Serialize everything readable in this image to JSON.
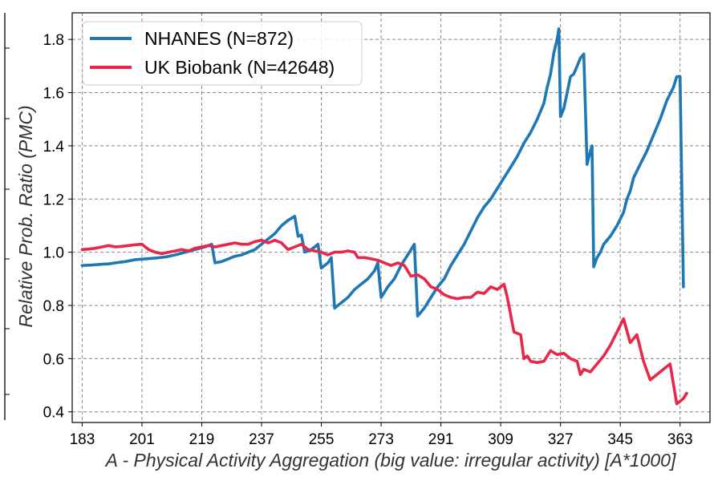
{
  "chart_data": {
    "type": "line",
    "title": "",
    "xlabel": "A - Physical Activity Aggregation (big value: irregular activity) [A*1000]",
    "ylabel": "Relative Prob. Ratio (PMC)",
    "xlim": [
      180,
      372
    ],
    "ylim": [
      0.36,
      1.9
    ],
    "x_ticks": [
      183,
      201,
      219,
      237,
      255,
      273,
      291,
      309,
      327,
      345,
      363
    ],
    "y_ticks": [
      0.4,
      0.6,
      0.8,
      1.0,
      1.2,
      1.4,
      1.6,
      1.8
    ],
    "y_tick_labels": [
      "0.4",
      "0.6",
      "0.8",
      "1.0",
      "1.2",
      "1.4",
      "1.6",
      "1.8"
    ],
    "grid": true,
    "legend_position": "top-left",
    "series": [
      {
        "name": "NHANES (N=872)",
        "color": "#1f77b4",
        "points": [
          [
            183,
            0.95
          ],
          [
            186,
            0.952
          ],
          [
            189,
            0.955
          ],
          [
            191,
            0.956
          ],
          [
            193,
            0.96
          ],
          [
            196,
            0.965
          ],
          [
            199,
            0.972
          ],
          [
            202,
            0.975
          ],
          [
            205,
            0.978
          ],
          [
            208,
            0.982
          ],
          [
            211,
            0.99
          ],
          [
            214,
            1.0
          ],
          [
            217,
            1.01
          ],
          [
            220,
            1.02
          ],
          [
            222,
            1.03
          ],
          [
            223,
            0.96
          ],
          [
            225,
            0.965
          ],
          [
            227,
            0.975
          ],
          [
            229,
            0.985
          ],
          [
            231,
            0.99
          ],
          [
            233,
            1.0
          ],
          [
            235,
            1.01
          ],
          [
            237,
            1.03
          ],
          [
            239,
            1.05
          ],
          [
            241,
            1.07
          ],
          [
            243,
            1.1
          ],
          [
            245,
            1.12
          ],
          [
            247,
            1.135
          ],
          [
            248,
            1.06
          ],
          [
            249,
            1.065
          ],
          [
            250,
            1.0
          ],
          [
            252,
            1.01
          ],
          [
            254,
            1.03
          ],
          [
            255,
            0.94
          ],
          [
            257,
            0.96
          ],
          [
            258,
            0.98
          ],
          [
            259,
            0.79
          ],
          [
            261,
            0.81
          ],
          [
            263,
            0.83
          ],
          [
            265,
            0.86
          ],
          [
            267,
            0.88
          ],
          [
            269,
            0.9
          ],
          [
            271,
            0.93
          ],
          [
            272,
            0.96
          ],
          [
            273,
            0.83
          ],
          [
            275,
            0.87
          ],
          [
            277,
            0.9
          ],
          [
            279,
            0.95
          ],
          [
            281,
            0.99
          ],
          [
            283,
            1.03
          ],
          [
            284,
            0.76
          ],
          [
            286,
            0.79
          ],
          [
            288,
            0.83
          ],
          [
            290,
            0.87
          ],
          [
            292,
            0.9
          ],
          [
            294,
            0.95
          ],
          [
            296,
            0.99
          ],
          [
            298,
            1.03
          ],
          [
            300,
            1.08
          ],
          [
            302,
            1.13
          ],
          [
            304,
            1.17
          ],
          [
            306,
            1.2
          ],
          [
            308,
            1.24
          ],
          [
            310,
            1.28
          ],
          [
            312,
            1.32
          ],
          [
            314,
            1.36
          ],
          [
            316,
            1.41
          ],
          [
            318,
            1.45
          ],
          [
            320,
            1.5
          ],
          [
            322,
            1.56
          ],
          [
            323,
            1.62
          ],
          [
            324,
            1.67
          ],
          [
            325,
            1.75
          ],
          [
            326,
            1.8
          ],
          [
            326.5,
            1.84
          ],
          [
            327,
            1.51
          ],
          [
            328,
            1.54
          ],
          [
            329,
            1.6
          ],
          [
            330,
            1.66
          ],
          [
            331,
            1.67
          ],
          [
            332,
            1.7
          ],
          [
            333,
            1.73
          ],
          [
            334,
            1.745
          ],
          [
            335,
            1.33
          ],
          [
            336,
            1.38
          ],
          [
            336.5,
            1.4
          ],
          [
            337,
            0.945
          ],
          [
            338,
            0.98
          ],
          [
            339,
            1.0
          ],
          [
            340,
            1.03
          ],
          [
            342,
            1.06
          ],
          [
            344,
            1.1
          ],
          [
            346,
            1.15
          ],
          [
            347,
            1.2
          ],
          [
            348,
            1.23
          ],
          [
            349,
            1.28
          ],
          [
            351,
            1.33
          ],
          [
            353,
            1.38
          ],
          [
            355,
            1.44
          ],
          [
            357,
            1.5
          ],
          [
            359,
            1.57
          ],
          [
            361,
            1.62
          ],
          [
            362,
            1.66
          ],
          [
            363,
            1.66
          ],
          [
            364,
            0.87
          ]
        ]
      },
      {
        "name": "UK Biobank (N=42648)",
        "color": "#e8284a",
        "points": [
          [
            183,
            1.01
          ],
          [
            185,
            1.012
          ],
          [
            187,
            1.015
          ],
          [
            189,
            1.02
          ],
          [
            191,
            1.025
          ],
          [
            193,
            1.02
          ],
          [
            195,
            1.022
          ],
          [
            197,
            1.025
          ],
          [
            199,
            1.028
          ],
          [
            201,
            1.03
          ],
          [
            203,
            1.01
          ],
          [
            205,
            1.0
          ],
          [
            207,
            0.995
          ],
          [
            209,
            1.0
          ],
          [
            211,
            1.005
          ],
          [
            213,
            1.01
          ],
          [
            215,
            1.005
          ],
          [
            217,
            1.015
          ],
          [
            219,
            1.02
          ],
          [
            221,
            1.025
          ],
          [
            223,
            1.02
          ],
          [
            225,
            1.025
          ],
          [
            227,
            1.03
          ],
          [
            229,
            1.035
          ],
          [
            231,
            1.03
          ],
          [
            233,
            1.03
          ],
          [
            235,
            1.04
          ],
          [
            237,
            1.045
          ],
          [
            239,
            1.035
          ],
          [
            241,
            1.045
          ],
          [
            243,
            1.035
          ],
          [
            245,
            1.01
          ],
          [
            247,
            1.02
          ],
          [
            249,
            1.03
          ],
          [
            251,
            1.01
          ],
          [
            253,
            1.005
          ],
          [
            255,
            1.0
          ],
          [
            257,
            0.99
          ],
          [
            259,
            1.0
          ],
          [
            261,
            1.0
          ],
          [
            263,
            1.005
          ],
          [
            265,
            1.0
          ],
          [
            266,
            0.98
          ],
          [
            268,
            0.98
          ],
          [
            270,
            0.975
          ],
          [
            272,
            0.97
          ],
          [
            274,
            0.96
          ],
          [
            276,
            0.95
          ],
          [
            278,
            0.96
          ],
          [
            280,
            0.95
          ],
          [
            282,
            0.91
          ],
          [
            284,
            0.915
          ],
          [
            286,
            0.9
          ],
          [
            288,
            0.87
          ],
          [
            290,
            0.86
          ],
          [
            292,
            0.84
          ],
          [
            294,
            0.83
          ],
          [
            296,
            0.825
          ],
          [
            298,
            0.83
          ],
          [
            300,
            0.83
          ],
          [
            302,
            0.85
          ],
          [
            304,
            0.845
          ],
          [
            306,
            0.87
          ],
          [
            308,
            0.86
          ],
          [
            310,
            0.88
          ],
          [
            311,
            0.83
          ],
          [
            313,
            0.7
          ],
          [
            315,
            0.69
          ],
          [
            316,
            0.6
          ],
          [
            317,
            0.61
          ],
          [
            318,
            0.59
          ],
          [
            320,
            0.585
          ],
          [
            322,
            0.59
          ],
          [
            324,
            0.63
          ],
          [
            326,
            0.615
          ],
          [
            328,
            0.62
          ],
          [
            330,
            0.6
          ],
          [
            332,
            0.59
          ],
          [
            333,
            0.54
          ],
          [
            334,
            0.56
          ],
          [
            336,
            0.55
          ],
          [
            338,
            0.58
          ],
          [
            340,
            0.61
          ],
          [
            342,
            0.65
          ],
          [
            344,
            0.7
          ],
          [
            346,
            0.75
          ],
          [
            348,
            0.66
          ],
          [
            350,
            0.69
          ],
          [
            352,
            0.59
          ],
          [
            354,
            0.52
          ],
          [
            356,
            0.54
          ],
          [
            358,
            0.56
          ],
          [
            360,
            0.58
          ],
          [
            362,
            0.43
          ],
          [
            364,
            0.45
          ],
          [
            365,
            0.47
          ]
        ]
      }
    ]
  }
}
